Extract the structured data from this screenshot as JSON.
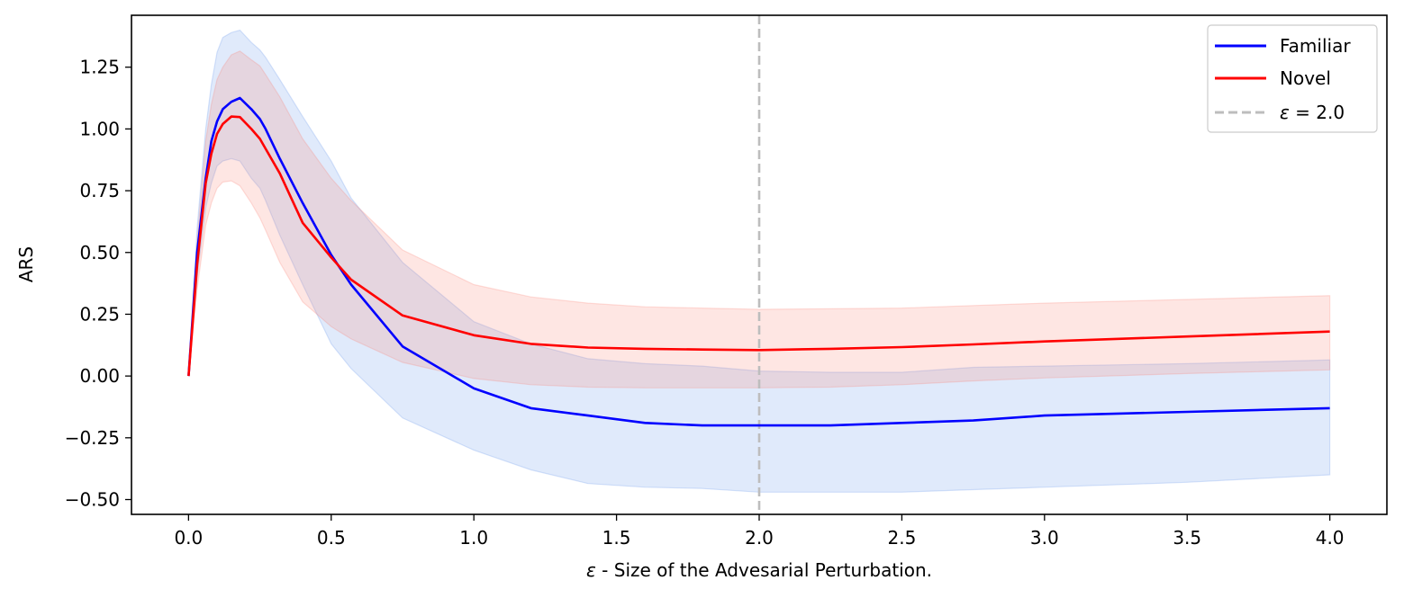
{
  "chart_data": {
    "type": "line",
    "xlabel_symbol": "ε",
    "xlabel_text": " - Size of the Advesarial Perturbation.",
    "ylabel": "ARS",
    "xlim": [
      -0.2,
      4.2
    ],
    "ylim": [
      -0.56,
      1.46
    ],
    "xticks": [
      0.0,
      0.5,
      1.0,
      1.5,
      2.0,
      2.5,
      3.0,
      3.5,
      4.0
    ],
    "xtick_labels": [
      "0.0",
      "0.5",
      "1.0",
      "1.5",
      "2.0",
      "2.5",
      "3.0",
      "3.5",
      "4.0"
    ],
    "yticks": [
      -0.5,
      -0.25,
      0.0,
      0.25,
      0.5,
      0.75,
      1.0,
      1.25
    ],
    "ytick_labels": [
      "−0.50",
      "−0.25",
      "0.00",
      "0.25",
      "0.50",
      "0.75",
      "1.00",
      "1.25"
    ],
    "grid": false,
    "legend_position": "top-right",
    "vline": {
      "x": 2.0,
      "label_symbol": "ε",
      "label_text": " = 2.0",
      "color": "#bdbdbd",
      "style": "dashed"
    },
    "series": [
      {
        "name": "Familiar",
        "color": "#0000ff",
        "band_color": "#6495ed",
        "x": [
          0,
          0.03,
          0.06,
          0.08,
          0.1,
          0.12,
          0.15,
          0.18,
          0.22,
          0.25,
          0.27,
          0.32,
          0.4,
          0.5,
          0.57,
          0.75,
          1.0,
          1.2,
          1.4,
          1.6,
          1.8,
          2.0,
          2.25,
          2.5,
          2.75,
          3.0,
          3.5,
          4.0
        ],
        "values": [
          0.0,
          0.5,
          0.8,
          0.95,
          1.03,
          1.08,
          1.11,
          1.125,
          1.08,
          1.04,
          1.0,
          0.88,
          0.7,
          0.49,
          0.37,
          0.12,
          -0.05,
          -0.13,
          -0.16,
          -0.19,
          -0.2,
          -0.2,
          -0.2,
          -0.19,
          -0.18,
          -0.16,
          -0.145,
          -0.13
        ],
        "upper": [
          0.0,
          0.6,
          1.0,
          1.18,
          1.31,
          1.37,
          1.39,
          1.4,
          1.35,
          1.32,
          1.29,
          1.2,
          1.05,
          0.87,
          0.72,
          0.46,
          0.22,
          0.13,
          0.07,
          0.05,
          0.04,
          0.02,
          0.015,
          0.015,
          0.035,
          0.04,
          0.05,
          0.065
        ],
        "lower": [
          0.0,
          0.4,
          0.68,
          0.78,
          0.85,
          0.87,
          0.88,
          0.87,
          0.8,
          0.76,
          0.71,
          0.57,
          0.37,
          0.13,
          0.03,
          -0.17,
          -0.3,
          -0.38,
          -0.435,
          -0.45,
          -0.455,
          -0.47,
          -0.47,
          -0.47,
          -0.46,
          -0.45,
          -0.43,
          -0.4
        ]
      },
      {
        "name": "Novel",
        "color": "#ff0000",
        "band_color": "#fa8072",
        "x": [
          0,
          0.03,
          0.06,
          0.08,
          0.1,
          0.12,
          0.15,
          0.18,
          0.22,
          0.25,
          0.27,
          0.32,
          0.4,
          0.5,
          0.57,
          0.75,
          1.0,
          1.2,
          1.4,
          1.6,
          1.8,
          2.0,
          2.25,
          2.5,
          2.75,
          3.0,
          3.5,
          4.0
        ],
        "values": [
          0.0,
          0.45,
          0.78,
          0.9,
          0.98,
          1.02,
          1.05,
          1.048,
          1.0,
          0.96,
          0.92,
          0.82,
          0.62,
          0.48,
          0.39,
          0.245,
          0.165,
          0.13,
          0.115,
          0.11,
          0.107,
          0.105,
          0.11,
          0.117,
          0.128,
          0.14,
          0.16,
          0.18
        ],
        "upper": [
          0.0,
          0.55,
          0.95,
          1.1,
          1.2,
          1.25,
          1.3,
          1.315,
          1.28,
          1.255,
          1.22,
          1.13,
          0.96,
          0.8,
          0.71,
          0.51,
          0.37,
          0.32,
          0.295,
          0.28,
          0.275,
          0.27,
          0.272,
          0.275,
          0.285,
          0.295,
          0.31,
          0.325
        ],
        "lower": [
          0.0,
          0.35,
          0.61,
          0.7,
          0.76,
          0.785,
          0.79,
          0.77,
          0.7,
          0.64,
          0.59,
          0.46,
          0.3,
          0.2,
          0.15,
          0.055,
          -0.01,
          -0.035,
          -0.045,
          -0.048,
          -0.048,
          -0.048,
          -0.045,
          -0.035,
          -0.02,
          -0.008,
          0.01,
          0.025
        ]
      }
    ]
  }
}
